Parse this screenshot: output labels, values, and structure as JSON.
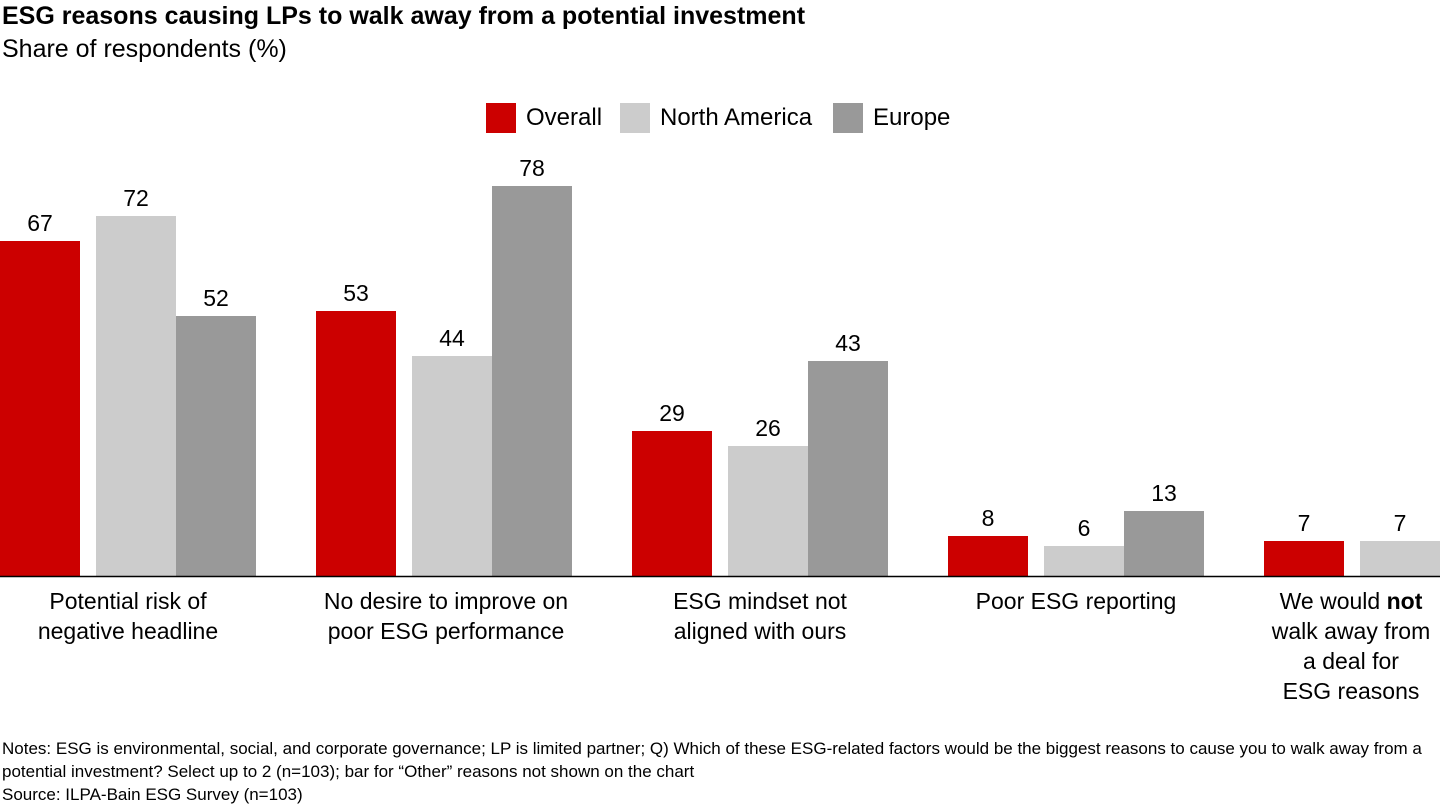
{
  "chart_data": {
    "type": "bar",
    "title": "ESG reasons causing LPs to walk away from a potential investment",
    "subtitle": "Share of respondents (%)",
    "xlabel": "",
    "ylabel": "",
    "ylim": [
      0,
      80
    ],
    "grid": false,
    "legend_position": "top-center",
    "categories": [
      "Potential risk of\nnegative headline",
      "No desire to improve on\npoor ESG performance",
      "ESG mindset not\naligned with ours",
      "Poor ESG reporting",
      "We would not\nwalk away from\na deal for\nESG reasons"
    ],
    "series": [
      {
        "name": "Overall",
        "color": "#cc0000",
        "values": [
          67,
          53,
          29,
          8,
          7
        ]
      },
      {
        "name": "North America",
        "color": "#cccccc",
        "values": [
          72,
          44,
          26,
          6,
          7
        ]
      },
      {
        "name": "Europe",
        "color": "#999999",
        "values": [
          52,
          78,
          43,
          13,
          null
        ]
      }
    ],
    "notes": "Notes: ESG is environmental, social, and corporate governance; LP is limited partner; Q) Which of these ESG-related factors would be the biggest reasons to cause you to walk away from a potential investment? Select up to 2 (n=103); bar for “Other” reasons not shown on the chart",
    "source": "Source: ILPA-Bain ESG Survey (n=103)"
  }
}
